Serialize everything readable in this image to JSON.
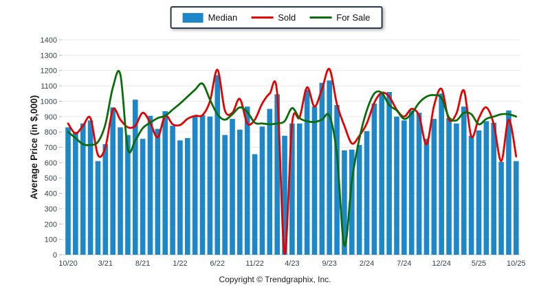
{
  "legend": {
    "items": [
      {
        "label": "Median",
        "type": "bar",
        "color": "#1d87c8"
      },
      {
        "label": "Sold",
        "type": "line",
        "color": "#e60000"
      },
      {
        "label": "For Sale",
        "type": "line",
        "color": "#0a6d0a"
      }
    ]
  },
  "y_axis": {
    "title": "Average Price (in $,000)"
  },
  "footer": {
    "copyright": "Copyright © Trendgraphix, Inc."
  },
  "colors": {
    "grid": "#e9e9e9",
    "baseline": "#c8c8c8",
    "tick": "#b3b3b3",
    "tick_text": "#36454f"
  },
  "chart_data": {
    "type": "bar",
    "title": "",
    "xlabel": "",
    "ylabel": "Average Price (in $,000)",
    "ylim": [
      0,
      1400
    ],
    "ytick_step": 100,
    "grid": true,
    "legend_position": "top-center",
    "x_tick_every": 5,
    "x": [
      "10/20",
      "11/20",
      "12/20",
      "1/21",
      "2/21",
      "3/21",
      "4/21",
      "5/21",
      "6/21",
      "7/21",
      "8/21",
      "9/21",
      "10/21",
      "11/21",
      "12/21",
      "1/22",
      "2/22",
      "3/22",
      "4/22",
      "5/22",
      "6/22",
      "7/22",
      "8/22",
      "9/22",
      "10/22",
      "11/22",
      "12/22",
      "1/23",
      "2/23",
      "3/23",
      "4/23",
      "5/23",
      "6/23",
      "7/23",
      "8/23",
      "9/23",
      "10/23",
      "11/23",
      "12/23",
      "1/24",
      "2/24",
      "3/24",
      "4/24",
      "5/24",
      "6/24",
      "7/24",
      "8/24",
      "9/24",
      "10/24",
      "11/24",
      "12/24",
      "1/25",
      "2/25",
      "3/25",
      "4/25",
      "5/25",
      "6/25",
      "7/25",
      "8/25",
      "9/25",
      "10/25"
    ],
    "series": [
      {
        "name": "Median",
        "type": "bar",
        "color": "#1d87c8",
        "values": [
          830,
          800,
          855,
          875,
          610,
          720,
          960,
          830,
          780,
          1010,
          755,
          905,
          820,
          935,
          840,
          745,
          760,
          905,
          910,
          900,
          1170,
          780,
          885,
          815,
          965,
          655,
          835,
          950,
          1045,
          775,
          855,
          855,
          1075,
          965,
          1120,
          1135,
          975,
          680,
          685,
          715,
          805,
          985,
          1050,
          1060,
          900,
          875,
          940,
          925,
          755,
          885,
          1050,
          890,
          855,
          965,
          775,
          810,
          870,
          860,
          605,
          940,
          610
        ]
      },
      {
        "name": "Sold",
        "type": "line",
        "color": "#e60000",
        "values": [
          855,
          790,
          840,
          890,
          650,
          700,
          945,
          880,
          830,
          840,
          925,
          860,
          765,
          905,
          850,
          845,
          885,
          905,
          910,
          1000,
          1205,
          940,
          925,
          1015,
          855,
          880,
          985,
          1050,
          1050,
          5,
          855,
          895,
          1090,
          965,
          1080,
          1210,
          980,
          840,
          725,
          775,
          855,
          990,
          1055,
          1030,
          945,
          900,
          950,
          905,
          720,
          970,
          1080,
          880,
          920,
          1070,
          770,
          890,
          960,
          850,
          610,
          880,
          640
        ]
      },
      {
        "name": "For Sale",
        "type": "line",
        "color": "#0a6d0a",
        "values": [
          800,
          760,
          720,
          715,
          735,
          850,
          1090,
          1175,
          690,
          745,
          825,
          860,
          890,
          905,
          945,
          985,
          1030,
          1075,
          1115,
          1010,
          915,
          880,
          915,
          960,
          930,
          860,
          855,
          850,
          855,
          870,
          955,
          890,
          870,
          865,
          880,
          905,
          650,
          60,
          480,
          755,
          940,
          1050,
          1055,
          975,
          940,
          885,
          920,
          990,
          1030,
          1040,
          1020,
          895,
          875,
          925,
          915,
          850,
          885,
          900,
          915,
          915,
          900
        ]
      }
    ]
  }
}
